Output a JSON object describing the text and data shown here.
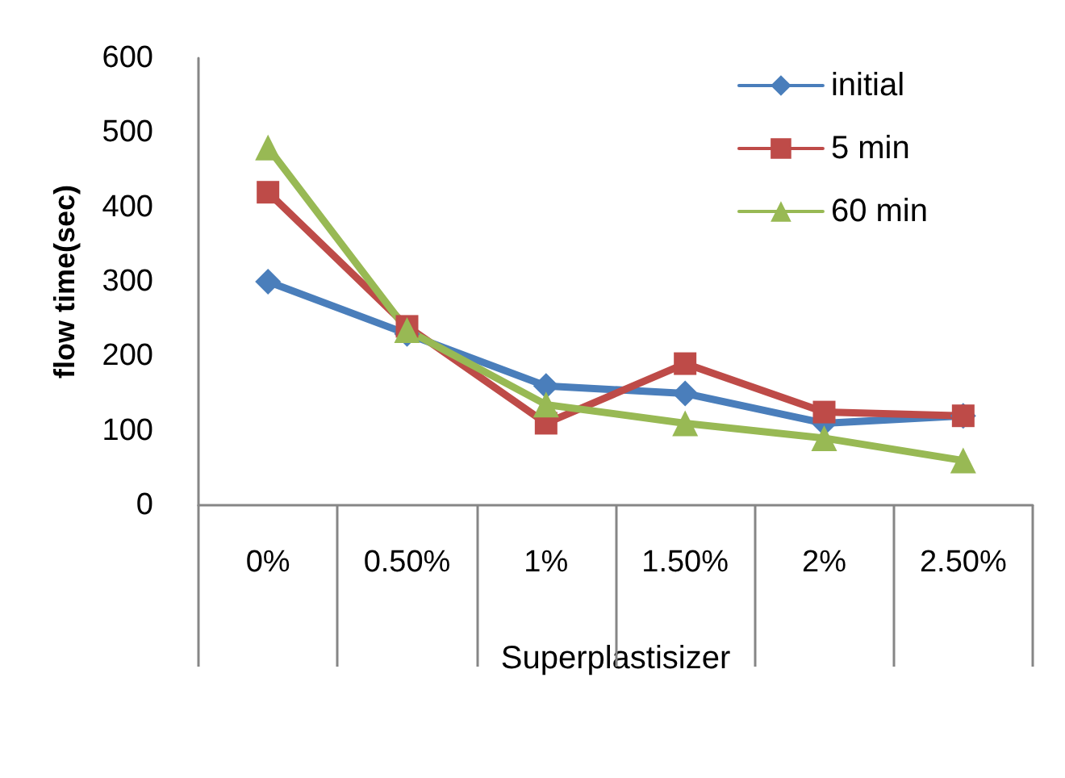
{
  "chart_data": {
    "type": "line",
    "xlabel": "Superplastisizer",
    "ylabel": "flow time(sec)",
    "categories": [
      "0%",
      "0.50%",
      "1%",
      "1.50%",
      "2%",
      "2.50%"
    ],
    "series": [
      {
        "name": "initial",
        "color": "#4a7ebb",
        "marker": "diamond",
        "values": [
          300,
          230,
          160,
          150,
          110,
          120
        ]
      },
      {
        "name": "5 min",
        "color": "#be4b48",
        "marker": "square",
        "values": [
          420,
          240,
          110,
          190,
          125,
          120
        ]
      },
      {
        "name": "60 min",
        "color": "#98b954",
        "marker": "triangle",
        "values": [
          480,
          235,
          135,
          110,
          90,
          60
        ]
      }
    ],
    "ylim": [
      0,
      600
    ],
    "yticks": [
      0,
      100,
      200,
      300,
      400,
      500,
      600
    ],
    "grid": false,
    "legend": "top right",
    "line_style": "solid"
  }
}
